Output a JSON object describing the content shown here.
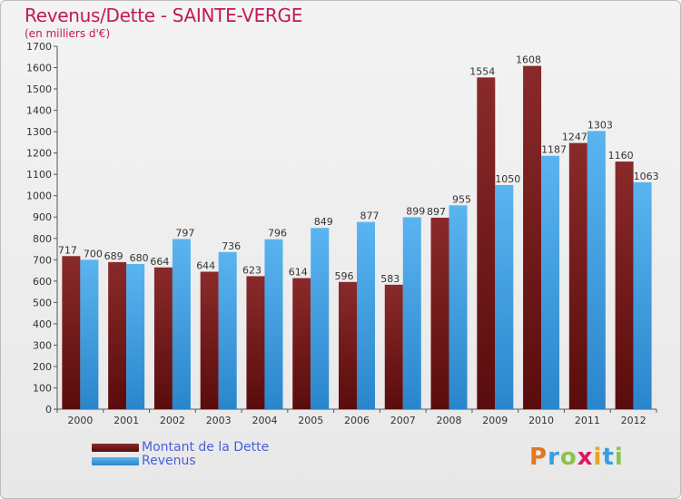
{
  "header": {
    "title": "Revenus/Dette - SAINTE-VERGE",
    "subtitle": "(en milliers d'€)"
  },
  "legend": {
    "items": [
      {
        "label": "Montant de la Dette",
        "color": "#7a1a1a"
      },
      {
        "label": "Revenus",
        "color": "#3a9de0"
      }
    ]
  },
  "logo": {
    "text": "Proxiti",
    "letter_colors": [
      "#e07820",
      "#3a9de0",
      "#8bc34a",
      "#d81b60",
      "#f0a020",
      "#3a9de0",
      "#8bc34a"
    ]
  },
  "colors": {
    "dette": "#7a1a1a",
    "revenus": "#3a9de0",
    "title": "#c2185b",
    "legend_text": "#4a5fd8"
  },
  "chart_data": {
    "type": "bar",
    "title": "Revenus/Dette - SAINTE-VERGE",
    "subtitle": "(en milliers d'€)",
    "categories": [
      "2000",
      "2001",
      "2002",
      "2003",
      "2004",
      "2005",
      "2006",
      "2007",
      "2008",
      "2009",
      "2010",
      "2011",
      "2012"
    ],
    "series": [
      {
        "name": "Montant de la Dette",
        "values": [
          717,
          689,
          664,
          644,
          623,
          614,
          596,
          583,
          897,
          1554,
          1608,
          1247,
          1160
        ]
      },
      {
        "name": "Revenus",
        "values": [
          700,
          680,
          797,
          736,
          796,
          849,
          877,
          899,
          955,
          1050,
          1187,
          1303,
          1063
        ]
      }
    ],
    "ylim": [
      0,
      1700
    ],
    "yticks": [
      0,
      100,
      200,
      300,
      400,
      500,
      600,
      700,
      800,
      900,
      1000,
      1100,
      1200,
      1300,
      1400,
      1500,
      1600,
      1700
    ],
    "grid": false,
    "legend_position": "bottom-left"
  }
}
